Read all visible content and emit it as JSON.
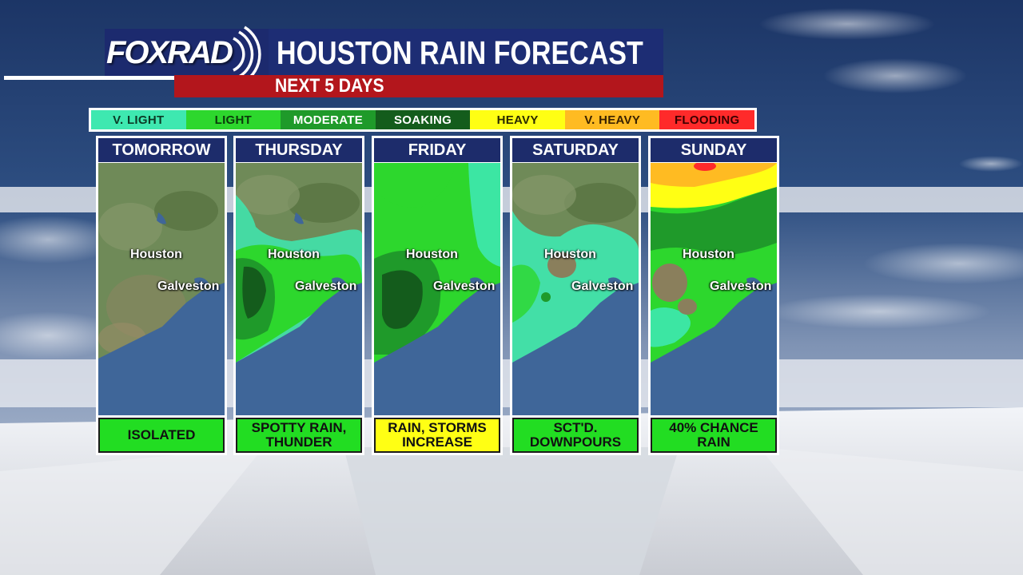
{
  "header": {
    "logo_text": "FOXRAD",
    "title": "HOUSTON RAIN FORECAST",
    "subtitle": "NEXT 5 DAYS"
  },
  "legend": [
    {
      "label": "V. LIGHT",
      "color": "#3ee8b0",
      "text_color": "#0c3a26"
    },
    {
      "label": "LIGHT",
      "color": "#2dd72d",
      "text_color": "#0b3a0b"
    },
    {
      "label": "MODERATE",
      "color": "#1f9a2a",
      "text_color": "#ffffff"
    },
    {
      "label": "SOAKING",
      "color": "#145c1c",
      "text_color": "#ffffff"
    },
    {
      "label": "HEAVY",
      "color": "#ffff14",
      "text_color": "#2a2a00"
    },
    {
      "label": "V. HEAVY",
      "color": "#ffbb22",
      "text_color": "#3a2200"
    },
    {
      "label": "FLOODING",
      "color": "#ff2a2a",
      "text_color": "#3a0000"
    }
  ],
  "cities": {
    "houston": "Houston",
    "galveston": "Galveston"
  },
  "days": [
    {
      "day": "TOMORROW",
      "condition": "ISOLATED",
      "condition_color": "#22dd22"
    },
    {
      "day": "THURSDAY",
      "condition": "SPOTTY RAIN,\nTHUNDER",
      "condition_color": "#22dd22"
    },
    {
      "day": "FRIDAY",
      "condition": "RAIN, STORMS\nINCREASE",
      "condition_color": "#ffff14"
    },
    {
      "day": "SATURDAY",
      "condition": "SCT'D.\nDOWNPOURS",
      "condition_color": "#22dd22"
    },
    {
      "day": "SUNDAY",
      "condition": "40% CHANCE\nRAIN",
      "condition_color": "#22dd22"
    }
  ],
  "colors": {
    "land": "#6f8a58",
    "land_dark": "#4f6b3e",
    "water": "#3f6699",
    "v_light": "#3ee8b0",
    "light": "#2dd72d",
    "moderate": "#1f9a2a",
    "soaking": "#145c1c",
    "heavy": "#ffff14",
    "v_heavy": "#ffbb22",
    "flooding": "#ff2a2a"
  },
  "icons": [
    "fox-rad-logo-waves-icon"
  ]
}
